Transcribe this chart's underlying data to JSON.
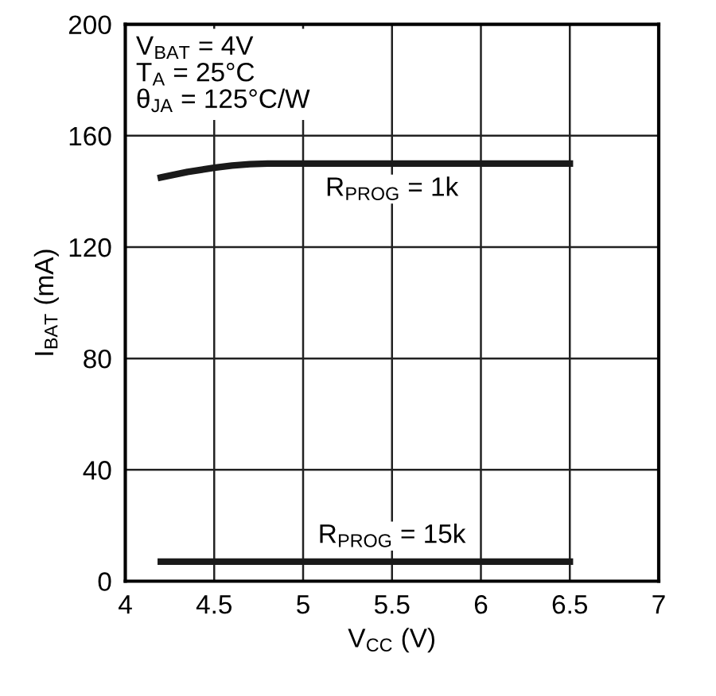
{
  "chart_data": {
    "type": "line",
    "xlabel": "V$_{CC}$ (V)",
    "ylabel": "I$_{BAT}$ (mA)",
    "xlim": [
      4,
      7
    ],
    "xticks": [
      4,
      4.5,
      5,
      5.5,
      6,
      6.5,
      7
    ],
    "ylim": [
      0,
      200
    ],
    "yticks": [
      0,
      40,
      80,
      120,
      160,
      200
    ],
    "grid": true,
    "marker": "none",
    "line_style": "solid",
    "series": [
      {
        "color": "#1a1a1a",
        "x": [
          4.2,
          4.35,
          4.5,
          4.6,
          4.7,
          4.8,
          5,
          5.5,
          6,
          6.5
        ],
        "values": [
          145,
          147,
          148.5,
          149.3,
          149.8,
          150,
          150,
          150,
          150,
          150
        ]
      },
      {
        "color": "#1a1a1a",
        "x": [
          4.2,
          6.5
        ],
        "values": [
          7,
          7
        ]
      }
    ],
    "annotations": [
      "V$_{BAT}$ = 4V\nT$_{A}$ = 25°C\nθ$_{JA}$ = 125°C/W",
      {
        "text": "R$_{PROG}$ = 1k",
        "x": 5.5,
        "y": 150
      },
      {
        "text": "R$_{PROG}$ = 15k",
        "x": 5.5,
        "y": 7
      }
    ]
  }
}
